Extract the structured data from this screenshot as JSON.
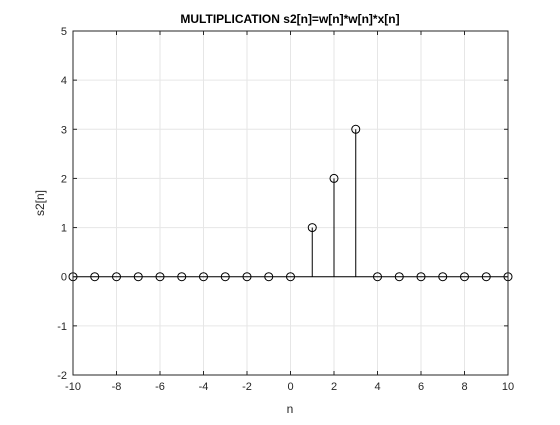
{
  "chart_data": {
    "type": "stem",
    "title": "MULTIPLICATION s2[n]=w[n]*w[n]*x[n]",
    "xlabel": "n",
    "ylabel": "s2[n]",
    "xlim": [
      -10,
      10
    ],
    "ylim": [
      -2,
      5
    ],
    "grid": true,
    "x_ticks": [
      -10,
      -8,
      -6,
      -4,
      -2,
      0,
      2,
      4,
      6,
      8,
      10
    ],
    "y_ticks": [
      -2,
      -1,
      0,
      1,
      2,
      3,
      4,
      5
    ],
    "x": [
      -10,
      -9,
      -8,
      -7,
      -6,
      -5,
      -4,
      -3,
      -2,
      -1,
      0,
      1,
      2,
      3,
      4,
      5,
      6,
      7,
      8,
      9,
      10
    ],
    "values": [
      0,
      0,
      0,
      0,
      0,
      0,
      0,
      0,
      0,
      0,
      0,
      1,
      2,
      3,
      0,
      0,
      0,
      0,
      0,
      0,
      0
    ],
    "marker": "circle",
    "colors": {
      "axes": "#262626",
      "grid": "#e6e6e6",
      "stem": "#000000",
      "background": "#ffffff"
    }
  }
}
